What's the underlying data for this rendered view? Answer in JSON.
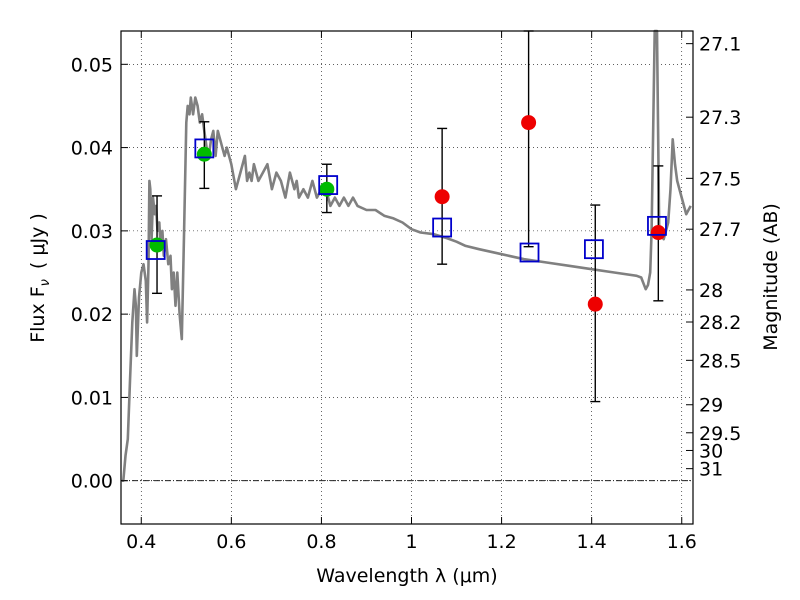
{
  "chart_data": {
    "type": "scatter",
    "xlabel": "Wavelength  λ (μm)",
    "ylabel": "Flux  F",
    "ylabel_sub": "ν",
    "ylabel_unit": "( μJy )",
    "ylabel_right": "Magnitude (AB)",
    "xlim": [
      0.355,
      1.625
    ],
    "ylim": [
      -0.0052,
      0.054
    ],
    "x_ticks": [
      0.4,
      0.6,
      0.8,
      1.0,
      1.2,
      1.4,
      1.6
    ],
    "x_tick_labels": [
      "0.4",
      "0.6",
      "0.8",
      "1",
      "1.2",
      "1.4",
      "1.6"
    ],
    "y_ticks": [
      0.0,
      0.01,
      0.02,
      0.03,
      0.04,
      0.05
    ],
    "y_tick_labels": [
      "0.00",
      "0.01",
      "0.02",
      "0.03",
      "0.04",
      "0.05"
    ],
    "right_ticks": [
      {
        "label": "27.1",
        "mag": 27.1
      },
      {
        "label": "27.3",
        "mag": 27.3
      },
      {
        "label": "27.5",
        "mag": 27.5
      },
      {
        "label": "27.7",
        "mag": 27.7
      },
      {
        "label": "28",
        "mag": 28.0
      },
      {
        "label": "28.2",
        "mag": 28.2
      },
      {
        "label": "28.5",
        "mag": 28.5
      },
      {
        "label": "29",
        "mag": 29.0
      },
      {
        "label": "29.5",
        "mag": 29.5
      },
      {
        "label": "30",
        "mag": 30.0
      },
      {
        "label": "31",
        "mag": 31.0
      }
    ],
    "grid": true,
    "colors": {
      "template": "#808080",
      "model_box": "#0000cc",
      "detection": "#00bb00",
      "upper": "#ee0000",
      "errorbar": "#000000"
    },
    "template_spectrum": {
      "x": [
        0.357,
        0.36,
        0.365,
        0.37,
        0.375,
        0.38,
        0.385,
        0.388,
        0.39,
        0.395,
        0.4,
        0.405,
        0.41,
        0.413,
        0.416,
        0.418,
        0.42,
        0.423,
        0.426,
        0.43,
        0.433,
        0.436,
        0.44,
        0.443,
        0.447,
        0.45,
        0.455,
        0.46,
        0.465,
        0.468,
        0.472,
        0.476,
        0.48,
        0.485,
        0.49,
        0.495,
        0.5,
        0.503,
        0.507,
        0.51,
        0.515,
        0.52,
        0.525,
        0.53,
        0.535,
        0.54,
        0.545,
        0.55,
        0.555,
        0.56,
        0.565,
        0.57,
        0.575,
        0.58,
        0.585,
        0.59,
        0.6,
        0.61,
        0.62,
        0.63,
        0.635,
        0.64,
        0.645,
        0.65,
        0.66,
        0.67,
        0.68,
        0.69,
        0.7,
        0.71,
        0.72,
        0.73,
        0.74,
        0.745,
        0.75,
        0.76,
        0.77,
        0.78,
        0.79,
        0.8,
        0.81,
        0.82,
        0.83,
        0.84,
        0.85,
        0.86,
        0.87,
        0.88,
        0.9,
        0.92,
        0.94,
        0.96,
        0.98,
        1.0,
        1.02,
        1.05,
        1.08,
        1.1,
        1.12,
        1.15,
        1.2,
        1.25,
        1.3,
        1.35,
        1.4,
        1.45,
        1.5,
        1.51,
        1.52,
        1.525,
        1.53,
        1.533,
        1.536,
        1.54,
        1.545,
        1.55,
        1.56,
        1.57,
        1.575,
        1.58,
        1.585,
        1.59,
        1.6,
        1.61,
        1.62
      ],
      "y": [
        0.0,
        0.0,
        0.003,
        0.005,
        0.012,
        0.019,
        0.023,
        0.021,
        0.015,
        0.022,
        0.025,
        0.026,
        0.024,
        0.019,
        0.026,
        0.036,
        0.035,
        0.029,
        0.034,
        0.032,
        0.033,
        0.03,
        0.031,
        0.028,
        0.03,
        0.027,
        0.029,
        0.026,
        0.027,
        0.023,
        0.025,
        0.021,
        0.025,
        0.02,
        0.017,
        0.03,
        0.043,
        0.045,
        0.044,
        0.046,
        0.044,
        0.046,
        0.045,
        0.043,
        0.044,
        0.042,
        0.04,
        0.039,
        0.041,
        0.042,
        0.039,
        0.042,
        0.041,
        0.04,
        0.039,
        0.04,
        0.038,
        0.035,
        0.037,
        0.039,
        0.036,
        0.037,
        0.036,
        0.038,
        0.036,
        0.037,
        0.038,
        0.035,
        0.037,
        0.036,
        0.034,
        0.037,
        0.035,
        0.036,
        0.034,
        0.035,
        0.034,
        0.036,
        0.034,
        0.035,
        0.035,
        0.033,
        0.034,
        0.033,
        0.034,
        0.033,
        0.034,
        0.033,
        0.0325,
        0.0325,
        0.0318,
        0.0315,
        0.031,
        0.0302,
        0.0298,
        0.0296,
        0.0291,
        0.0287,
        0.0282,
        0.0278,
        0.0272,
        0.0266,
        0.0262,
        0.0258,
        0.0254,
        0.025,
        0.0246,
        0.0244,
        0.023,
        0.0235,
        0.025,
        0.03,
        0.04,
        0.054,
        0.054,
        0.03,
        0.029,
        0.031,
        0.035,
        0.041,
        0.038,
        0.036,
        0.034,
        0.032,
        0.033
      ]
    },
    "series": [
      {
        "name": "",
        "marker": "open-square",
        "x": [
          0.432,
          0.54,
          0.815,
          1.068,
          1.262,
          1.405,
          1.545
        ],
        "y": [
          0.0277,
          0.0399,
          0.0355,
          0.0304,
          0.0274,
          0.0278,
          0.0306
        ]
      },
      {
        "name": "",
        "marker": "filled-circle-green",
        "x": [
          0.435,
          0.54,
          0.812
        ],
        "y": [
          0.0283,
          0.0392,
          0.035
        ],
        "yerr_low": [
          0.0058,
          0.0041,
          0.0028
        ],
        "yerr_high": [
          0.0059,
          0.0039,
          0.003
        ]
      },
      {
        "name": "",
        "marker": "filled-circle-red",
        "x": [
          1.068,
          1.26,
          1.408,
          1.548
        ],
        "y": [
          0.0341,
          0.043,
          0.0212,
          0.0298
        ],
        "yerr_low": [
          0.0081,
          0.0149,
          0.0117,
          0.0082
        ],
        "yerr_high": [
          0.0082,
          0.011,
          0.0119,
          0.008
        ]
      }
    ]
  }
}
